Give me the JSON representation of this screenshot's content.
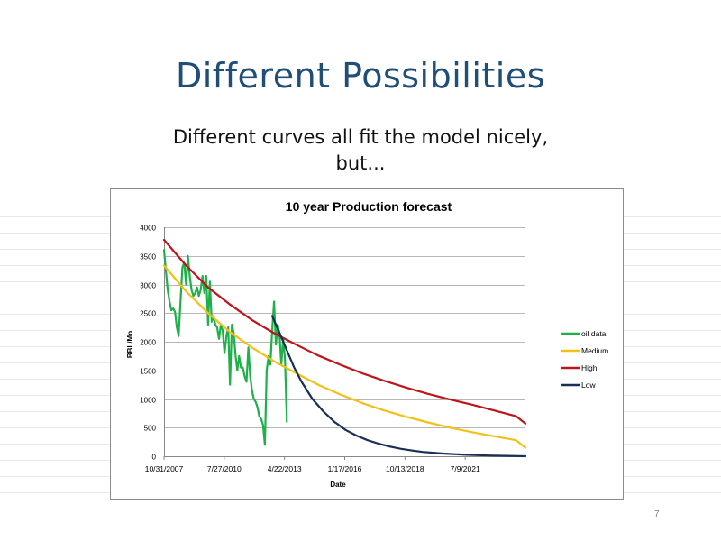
{
  "slide": {
    "title": "Different Possibilities",
    "subtitle_line1": "Different curves all fit the model nicely,",
    "subtitle_line2": "but...",
    "page_number": "7"
  },
  "chart_data": {
    "type": "line",
    "title": "10 year Production forecast",
    "xlabel": "Date",
    "ylabel": "BBL/Mo",
    "x_tick_labels": [
      "10/31/2007",
      "7/27/2010",
      "4/22/2013",
      "1/17/2016",
      "10/13/2018",
      "7/9/2021"
    ],
    "x_tick_dates": [
      "2007-10-31",
      "2010-07-27",
      "2013-04-22",
      "2016-01-17",
      "2018-10-13",
      "2021-07-09"
    ],
    "x_range": [
      "2007-10-31",
      "2024-04-04"
    ],
    "y_range": [
      0,
      4000
    ],
    "y_ticks": [
      0,
      500,
      1000,
      1500,
      2000,
      2500,
      3000,
      3500,
      4000
    ],
    "grid": "horizontal",
    "legend_position": "right",
    "series": [
      {
        "name": "oil data",
        "color": "#1fb04a",
        "points": [
          [
            "2007-10-31",
            3600
          ],
          [
            "2007-11-30",
            3250
          ],
          [
            "2007-12-31",
            2900
          ],
          [
            "2008-01-31",
            2700
          ],
          [
            "2008-02-29",
            2550
          ],
          [
            "2008-03-31",
            2580
          ],
          [
            "2008-04-30",
            2520
          ],
          [
            "2008-05-31",
            2250
          ],
          [
            "2008-06-30",
            2100
          ],
          [
            "2008-07-31",
            2700
          ],
          [
            "2008-08-31",
            3300
          ],
          [
            "2008-09-30",
            3380
          ],
          [
            "2008-10-31",
            3000
          ],
          [
            "2008-11-30",
            3500
          ],
          [
            "2008-12-31",
            3150
          ],
          [
            "2009-01-31",
            2900
          ],
          [
            "2009-02-28",
            2800
          ],
          [
            "2009-03-31",
            2850
          ],
          [
            "2009-04-30",
            2950
          ],
          [
            "2009-05-31",
            2800
          ],
          [
            "2009-06-30",
            2900
          ],
          [
            "2009-07-31",
            3150
          ],
          [
            "2009-08-31",
            2850
          ],
          [
            "2009-09-30",
            3150
          ],
          [
            "2009-10-31",
            2300
          ],
          [
            "2009-11-30",
            3050
          ],
          [
            "2009-12-31",
            2350
          ],
          [
            "2010-01-31",
            2450
          ],
          [
            "2010-02-28",
            2300
          ],
          [
            "2010-03-31",
            2250
          ],
          [
            "2010-04-30",
            2050
          ],
          [
            "2010-05-31",
            2300
          ],
          [
            "2010-06-30",
            2200
          ],
          [
            "2010-07-31",
            1800
          ],
          [
            "2010-08-31",
            2100
          ],
          [
            "2010-09-30",
            2250
          ],
          [
            "2010-10-31",
            1250
          ],
          [
            "2010-11-30",
            2300
          ],
          [
            "2010-12-31",
            2150
          ],
          [
            "2011-01-31",
            1750
          ],
          [
            "2011-02-28",
            1500
          ],
          [
            "2011-03-31",
            1750
          ],
          [
            "2011-04-30",
            1550
          ],
          [
            "2011-05-31",
            1550
          ],
          [
            "2011-06-30",
            1400
          ],
          [
            "2011-07-31",
            1300
          ],
          [
            "2011-08-31",
            1900
          ],
          [
            "2011-09-30",
            1400
          ],
          [
            "2011-10-31",
            1150
          ],
          [
            "2011-11-30",
            1000
          ],
          [
            "2011-12-31",
            950
          ],
          [
            "2012-01-31",
            850
          ],
          [
            "2012-02-29",
            700
          ],
          [
            "2012-03-31",
            650
          ],
          [
            "2012-04-30",
            550
          ],
          [
            "2012-05-31",
            200
          ],
          [
            "2012-06-30",
            1500
          ],
          [
            "2012-07-31",
            1750
          ],
          [
            "2012-08-31",
            1600
          ],
          [
            "2012-09-30",
            2200
          ],
          [
            "2012-10-31",
            2700
          ],
          [
            "2012-11-30",
            1950
          ],
          [
            "2012-12-31",
            2300
          ],
          [
            "2013-01-31",
            2100
          ],
          [
            "2013-02-28",
            1600
          ],
          [
            "2013-03-31",
            2050
          ],
          [
            "2013-04-30",
            1700
          ],
          [
            "2013-05-31",
            600
          ]
        ]
      },
      {
        "name": "Medium",
        "color": "#f2c016",
        "points": [
          [
            "2007-10-31",
            3330
          ],
          [
            "2008-10-31",
            2880
          ],
          [
            "2009-10-31",
            2500
          ],
          [
            "2010-10-31",
            2170
          ],
          [
            "2011-10-31",
            1900
          ],
          [
            "2012-10-31",
            1660
          ],
          [
            "2013-10-31",
            1450
          ],
          [
            "2014-10-31",
            1250
          ],
          [
            "2015-10-31",
            1080
          ],
          [
            "2016-10-31",
            930
          ],
          [
            "2017-10-31",
            800
          ],
          [
            "2018-10-31",
            690
          ],
          [
            "2019-10-31",
            590
          ],
          [
            "2020-10-31",
            500
          ],
          [
            "2021-10-31",
            420
          ],
          [
            "2022-10-31",
            350
          ],
          [
            "2023-10-31",
            280
          ],
          [
            "2024-04-04",
            150
          ]
        ]
      },
      {
        "name": "High",
        "color": "#c0141b",
        "points": [
          [
            "2007-10-31",
            3780
          ],
          [
            "2008-10-31",
            3330
          ],
          [
            "2009-10-31",
            2950
          ],
          [
            "2010-10-31",
            2650
          ],
          [
            "2011-10-31",
            2380
          ],
          [
            "2012-10-31",
            2150
          ],
          [
            "2013-10-31",
            1950
          ],
          [
            "2014-10-31",
            1760
          ],
          [
            "2015-10-31",
            1600
          ],
          [
            "2016-10-31",
            1450
          ],
          [
            "2017-10-31",
            1320
          ],
          [
            "2018-10-31",
            1200
          ],
          [
            "2019-10-31",
            1090
          ],
          [
            "2020-10-31",
            990
          ],
          [
            "2021-10-31",
            900
          ],
          [
            "2022-10-31",
            800
          ],
          [
            "2023-10-31",
            700
          ],
          [
            "2024-04-04",
            570
          ]
        ]
      },
      {
        "name": "Low",
        "color": "#1a2f55",
        "points": [
          [
            "2012-09-30",
            2450
          ],
          [
            "2013-01-31",
            2150
          ],
          [
            "2013-05-31",
            1850
          ],
          [
            "2013-09-30",
            1550
          ],
          [
            "2014-01-31",
            1300
          ],
          [
            "2014-07-31",
            1000
          ],
          [
            "2015-01-31",
            780
          ],
          [
            "2015-07-31",
            600
          ],
          [
            "2016-01-31",
            460
          ],
          [
            "2016-07-31",
            360
          ],
          [
            "2017-01-31",
            280
          ],
          [
            "2017-07-31",
            220
          ],
          [
            "2018-01-31",
            170
          ],
          [
            "2018-07-31",
            130
          ],
          [
            "2019-01-31",
            100
          ],
          [
            "2019-07-31",
            75
          ],
          [
            "2020-07-31",
            45
          ],
          [
            "2021-07-31",
            25
          ],
          [
            "2022-07-31",
            12
          ],
          [
            "2024-04-04",
            0
          ]
        ]
      }
    ]
  }
}
